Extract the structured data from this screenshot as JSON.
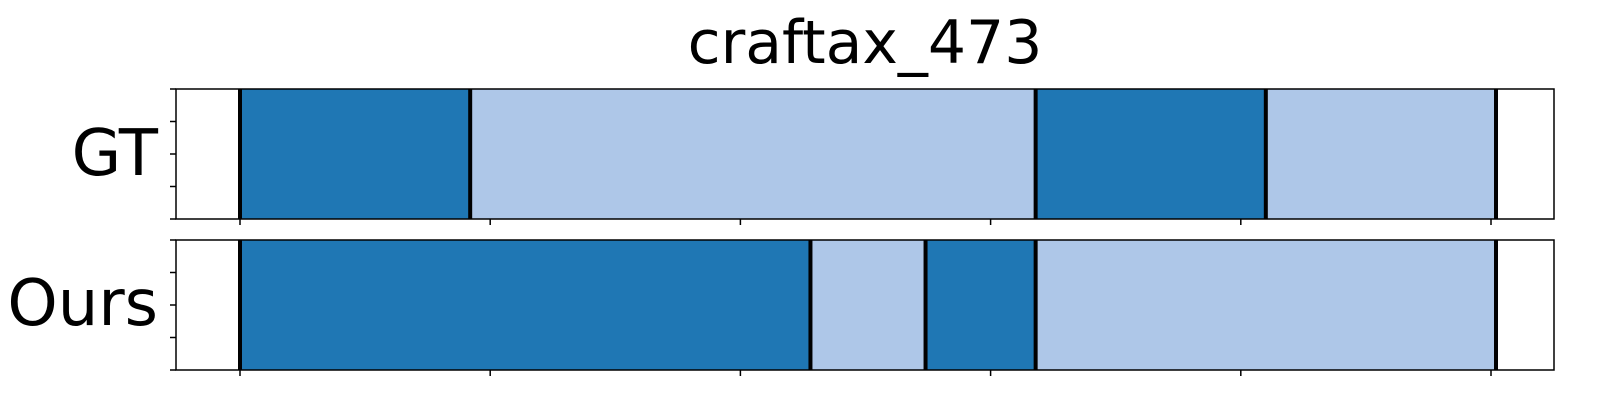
{
  "chart_data": {
    "type": "bar",
    "title": "craftax_473",
    "xlim": [
      0,
      125
    ],
    "colors": {
      "dark": "#1f77b4",
      "light": "#aec7e8",
      "boundary": "#000000"
    },
    "rows": [
      {
        "label": "GT",
        "segments": [
          {
            "start": 6,
            "end": 29,
            "class": "dark"
          },
          {
            "start": 29,
            "end": 85.5,
            "class": "light"
          },
          {
            "start": 85.5,
            "end": 108.5,
            "class": "dark"
          },
          {
            "start": 108.5,
            "end": 131.5,
            "class": "light"
          }
        ],
        "boundaries": [
          6,
          29,
          85.5,
          108.5,
          131.5
        ]
      },
      {
        "label": "Ours",
        "segments": [
          {
            "start": 6,
            "end": 63,
            "class": "dark"
          },
          {
            "start": 63,
            "end": 74.5,
            "class": "light"
          },
          {
            "start": 74.5,
            "end": 85.5,
            "class": "dark"
          },
          {
            "start": 85.5,
            "end": 131.5,
            "class": "light"
          }
        ],
        "boundaries": [
          6,
          63,
          74.5,
          85.5,
          131.5
        ]
      }
    ],
    "xticks": [
      6,
      31,
      56,
      81,
      106,
      131
    ],
    "grid": false
  }
}
